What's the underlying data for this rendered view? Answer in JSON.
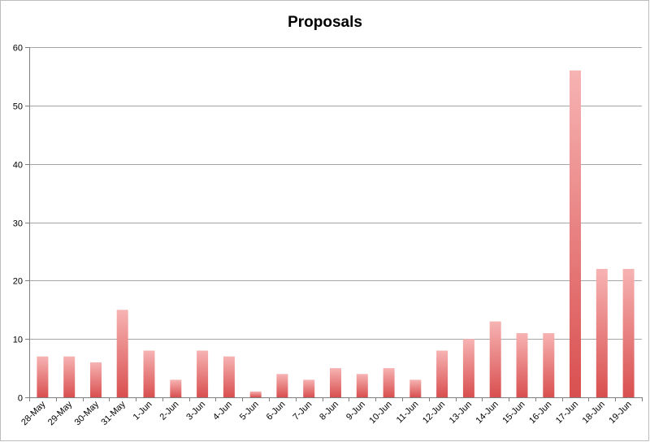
{
  "chart_data": {
    "type": "bar",
    "title": "Proposals",
    "xlabel": "",
    "ylabel": "",
    "ylim": [
      0,
      60
    ],
    "yticks": [
      0,
      10,
      20,
      30,
      40,
      50,
      60
    ],
    "grid": true,
    "legend": "none",
    "categories": [
      "28-May",
      "29-May",
      "30-May",
      "31-May",
      "1-Jun",
      "2-Jun",
      "3-Jun",
      "4-Jun",
      "5-Jun",
      "6-Jun",
      "7-Jun",
      "8-Jun",
      "9-Jun",
      "10-Jun",
      "11-Jun",
      "12-Jun",
      "13-Jun",
      "14-Jun",
      "15-Jun",
      "16-Jun",
      "17-Jun",
      "18-Jun",
      "19-Jun"
    ],
    "values": [
      7,
      7,
      6,
      15,
      8,
      3,
      8,
      7,
      1,
      4,
      3,
      5,
      4,
      5,
      3,
      8,
      10,
      13,
      11,
      11,
      56,
      22,
      22
    ],
    "colors": {
      "bar_top": "#f7b3b3",
      "bar_bottom": "#d94f4f",
      "grid": "#a6a6a6",
      "axis": "#7f7f7f"
    }
  }
}
